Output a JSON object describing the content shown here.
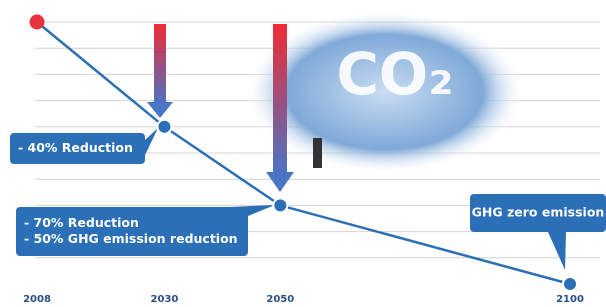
{
  "chart_data": {
    "type": "line",
    "x": [
      2008,
      2030,
      2050,
      2100
    ],
    "values": [
      100,
      60,
      30,
      0
    ],
    "color": "#2b6fb6",
    "first_point_color": "#e8343c",
    "xlim": [
      2008,
      2100
    ],
    "ylim": [
      0,
      100
    ],
    "yticks": [
      10,
      20,
      30,
      40,
      50,
      60,
      70,
      80,
      90,
      100
    ],
    "grid": true,
    "cloud_text": "CO₂",
    "annotations": [
      {
        "lines": [
          "- 40% Reduction"
        ]
      },
      {
        "lines": [
          "- 70% Reduction",
          "- 50% GHG emission reduction"
        ]
      },
      {
        "lines": [
          "GHG zero emission"
        ]
      }
    ]
  }
}
